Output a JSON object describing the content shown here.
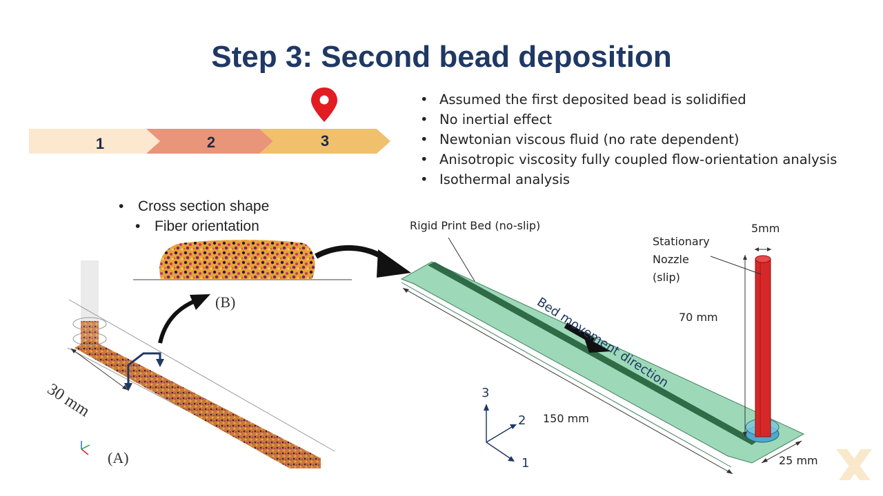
{
  "title": "Step 3: Second bead deposition",
  "steps": [
    {
      "label": "1",
      "color": "#fbe8cf"
    },
    {
      "label": "2",
      "color": "#e8957a"
    },
    {
      "label": "3",
      "color": "#f0c06c"
    }
  ],
  "current_step_marker": "map-pin-icon",
  "assumptions": [
    "Assumed the first deposited bead is solidified",
    "No inertial effect",
    "Newtonian viscous fluid (no rate dependent)",
    "Anisotropic viscosity fully coupled flow-orientation analysis",
    "Isothermal analysis"
  ],
  "cross_section": {
    "item": "Cross section shape",
    "subitem": "Fiber orientation"
  },
  "labels": {
    "panel_a": "(A)",
    "panel_b": "(B)",
    "length_a": "30 mm",
    "print_bed": "Rigid Print Bed (no-slip)",
    "nozzle_line1": "Stationary",
    "nozzle_line2": "Nozzle",
    "nozzle_line3": "(slip)",
    "nozzle_diameter": "5mm",
    "nozzle_height": "70 mm",
    "bed_length": "150 mm",
    "bed_width": "25 mm",
    "bed_direction": "Bed movement direction",
    "axis_1": "1",
    "axis_2": "2",
    "axis_3": "3"
  },
  "colors": {
    "title": "#1f3864",
    "bed": "#9dd9b8",
    "nozzle": "#d62828",
    "pin": "#e31b23"
  }
}
